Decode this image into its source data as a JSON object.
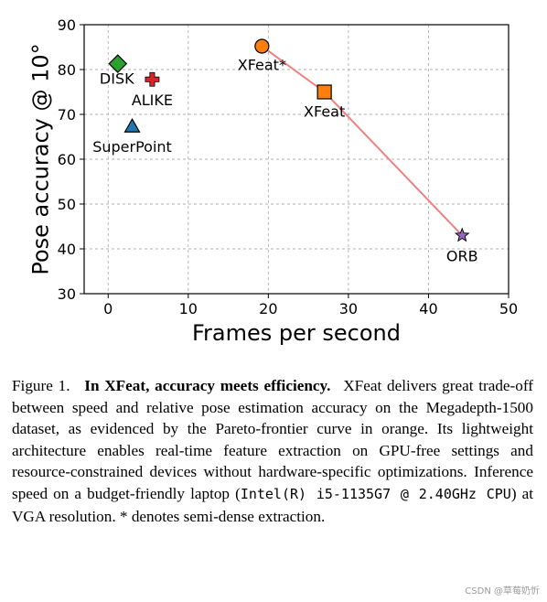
{
  "chart_data": {
    "type": "scatter",
    "title": "",
    "xlabel": "Frames per second",
    "ylabel": "Pose accuracy @ 10°",
    "xlim": [
      -3,
      50
    ],
    "ylim": [
      30,
      90
    ],
    "xticks": [
      0,
      10,
      20,
      30,
      40,
      50
    ],
    "yticks": [
      30,
      40,
      50,
      60,
      70,
      80,
      90
    ],
    "grid": true,
    "gridstyle": "dashed",
    "points": [
      {
        "name": "DISK",
        "x": 1.2,
        "y": 81.3,
        "marker": "diamond",
        "color": "#2ca02c",
        "label_pos": "below-left"
      },
      {
        "name": "ALIKE",
        "x": 5.5,
        "y": 77.8,
        "marker": "plus",
        "color": "#d62728",
        "label_pos": "below"
      },
      {
        "name": "SuperPoint",
        "x": 3.0,
        "y": 67.3,
        "marker": "triangle",
        "color": "#1f77b4",
        "label_pos": "below"
      },
      {
        "name": "XFeat*",
        "x": 19.2,
        "y": 85.2,
        "marker": "circle",
        "color": "#ff7f0e",
        "label_pos": "below"
      },
      {
        "name": "XFeat",
        "x": 27.0,
        "y": 75.0,
        "marker": "square",
        "color": "#ff7f0e",
        "label_pos": "below"
      },
      {
        "name": "ORB",
        "x": 44.2,
        "y": 43.0,
        "marker": "star",
        "color": "#9467bd",
        "label_pos": "below"
      }
    ],
    "frontier": {
      "color": "#f08080",
      "x": [
        19.2,
        27.0,
        44.2
      ],
      "y": [
        85.2,
        75.0,
        43.0
      ]
    }
  },
  "caption": {
    "label": "Figure 1.",
    "bold": "In XFeat, accuracy meets efficiency.",
    "text1": "XFeat delivers great trade-off between speed and relative pose estimation accuracy on the Megadepth-1500 dataset, as evidenced by the Pareto-frontier curve in orange. Its lightweight architecture enables real-time feature extraction on GPU-free settings and resource-constrained devices without hardware-specific optimizations. Inference speed on a budget-friendly laptop (",
    "mono": "Intel(R) i5-1135G7 @ 2.40GHz CPU",
    "text2": ") at VGA resolution.",
    "note": "* denotes semi-dense extraction."
  },
  "watermark": "CSDN @草莓奶忻"
}
